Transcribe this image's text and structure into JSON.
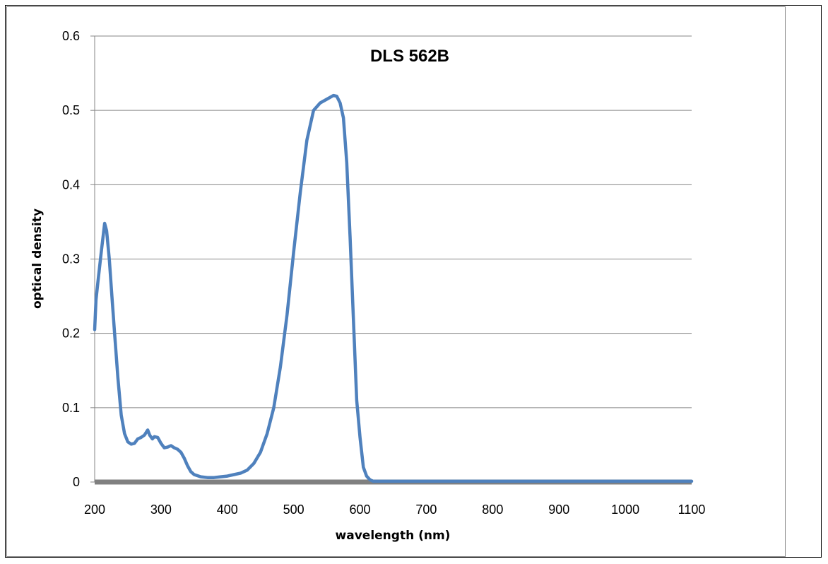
{
  "chart_data": {
    "type": "line",
    "title": "DLS 562B",
    "xlabel": "wavelength (nm)",
    "ylabel": "optical density",
    "xlim": [
      200,
      1100
    ],
    "ylim": [
      0,
      0.6
    ],
    "xticks": [
      200,
      300,
      400,
      500,
      600,
      700,
      800,
      900,
      1000,
      1100
    ],
    "yticks": [
      0,
      0.1,
      0.2,
      0.3,
      0.4,
      0.5,
      0.6
    ],
    "ytick_labels": [
      "0",
      "0.1",
      "0.2",
      "0.3",
      "0.4",
      "0.5",
      "0.6"
    ],
    "grid": "horizontal",
    "legend": "none",
    "series": [
      {
        "color": "#4f81bd",
        "x": [
          200,
          202,
          205,
          210,
          215,
          218,
          222,
          226,
          230,
          235,
          240,
          245,
          250,
          255,
          260,
          265,
          270,
          275,
          280,
          283,
          287,
          290,
          295,
          300,
          305,
          310,
          315,
          320,
          325,
          330,
          335,
          340,
          345,
          350,
          360,
          370,
          380,
          390,
          400,
          410,
          420,
          430,
          440,
          450,
          460,
          470,
          480,
          490,
          500,
          510,
          520,
          530,
          540,
          550,
          560,
          565,
          570,
          575,
          580,
          585,
          590,
          595,
          600,
          605,
          610,
          615,
          620,
          625,
          630,
          640,
          650,
          700,
          800,
          900,
          1000,
          1050,
          1100
        ],
        "y": [
          0.205,
          0.245,
          0.27,
          0.31,
          0.348,
          0.338,
          0.3,
          0.25,
          0.2,
          0.14,
          0.09,
          0.065,
          0.054,
          0.051,
          0.052,
          0.058,
          0.06,
          0.063,
          0.07,
          0.063,
          0.058,
          0.061,
          0.06,
          0.052,
          0.046,
          0.047,
          0.049,
          0.046,
          0.044,
          0.04,
          0.032,
          0.022,
          0.014,
          0.01,
          0.007,
          0.006,
          0.006,
          0.007,
          0.008,
          0.01,
          0.012,
          0.016,
          0.025,
          0.04,
          0.065,
          0.1,
          0.155,
          0.225,
          0.31,
          0.39,
          0.46,
          0.5,
          0.51,
          0.515,
          0.52,
          0.519,
          0.51,
          0.49,
          0.43,
          0.33,
          0.22,
          0.11,
          0.06,
          0.02,
          0.008,
          0.003,
          0.001,
          0.001,
          0.001,
          0.001,
          0.001,
          0.001,
          0.001,
          0.001,
          0.001,
          0.001,
          0.001
        ]
      }
    ]
  }
}
